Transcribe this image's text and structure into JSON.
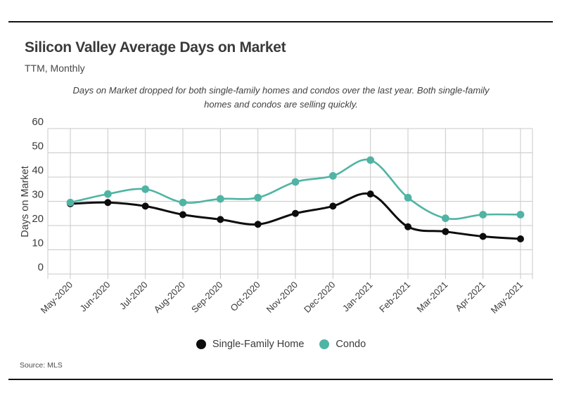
{
  "page": {
    "title": "Silicon Valley Average Days on Market",
    "subtitle": "TTM, Monthly",
    "annotation": {
      "line1": "Days on Market dropped for both single-family homes and condos over the last year. Both single-family",
      "line2": "homes and condos are selling quickly."
    },
    "source": "Source: MLS"
  },
  "colors": {
    "single_family": "#0d0d0d",
    "condo": "#50b4a4",
    "grid": "#c9c9c9",
    "text": "#3a3a3a",
    "rule": "#141414"
  },
  "chart_data": {
    "type": "line",
    "title": "Silicon Valley Average Days on Market",
    "subtitle": "TTM, Monthly",
    "xlabel": "",
    "ylabel": "Days on Market",
    "ylim": [
      0,
      60
    ],
    "yticks": [
      0,
      10,
      20,
      30,
      40,
      50,
      60
    ],
    "grid": true,
    "legend_position": "bottom",
    "categories": [
      "May-2020",
      "Jun-2020",
      "Jul-2020",
      "Aug-2020",
      "Sep-2020",
      "Oct-2020",
      "Nov-2020",
      "Dec-2020",
      "Jan-2021",
      "Feb-2021",
      "Mar-2021",
      "Apr-2021",
      "May-2021"
    ],
    "series": [
      {
        "name": "Single-Family Home",
        "color": "#0d0d0d",
        "values": [
          29,
          29.5,
          28,
          24.5,
          22.5,
          20.5,
          25,
          28,
          33,
          19.5,
          17.5,
          15.5,
          14.5
        ]
      },
      {
        "name": "Condo",
        "color": "#50b4a4",
        "values": [
          29.5,
          33,
          35,
          29.5,
          31,
          31.5,
          38,
          40.5,
          47,
          31.5,
          23,
          24.5,
          24.5
        ]
      }
    ]
  }
}
